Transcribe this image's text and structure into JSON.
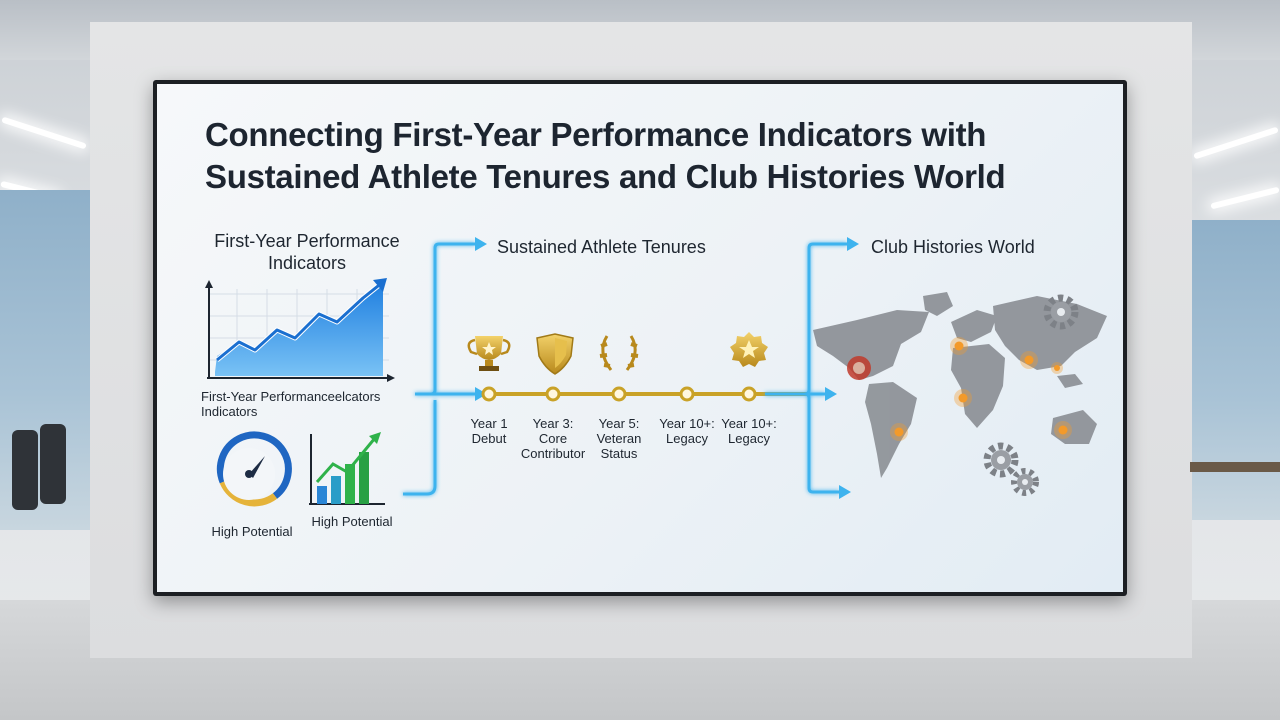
{
  "slide": {
    "title": "Connecting First-Year Performance Indicators with Sustained Athlete Tenures and Club Histories World",
    "left_panel": {
      "heading": "First-Year Performance Indicators",
      "chart_caption": "First-Year Performanceelcators Indicators",
      "gauge_caption": "High Potential",
      "bars_caption": "High Potential"
    },
    "middle_panel": {
      "heading": "Sustained Athlete Tenures",
      "milestones": [
        {
          "icon": "trophy-icon",
          "label": "Year 1 Debut"
        },
        {
          "icon": "shield-icon",
          "label": "Year 3: Core Contributor"
        },
        {
          "icon": "laurel-icon",
          "label": "Year 5: Veteran Status"
        },
        {
          "icon": "",
          "label": "Year 10+: Legacy"
        },
        {
          "icon": "star-medal-icon",
          "label": "Year 10+: Legacy"
        }
      ]
    },
    "right_panel": {
      "heading": "Club Histories World"
    }
  },
  "colors": {
    "accent_blue": "#2f9be6",
    "arrow_blue": "#3eb3ee",
    "gold": "#c9a227",
    "green": "#2fb24a",
    "map_gray": "#8f9399",
    "pin_orange": "#f39a2a"
  }
}
